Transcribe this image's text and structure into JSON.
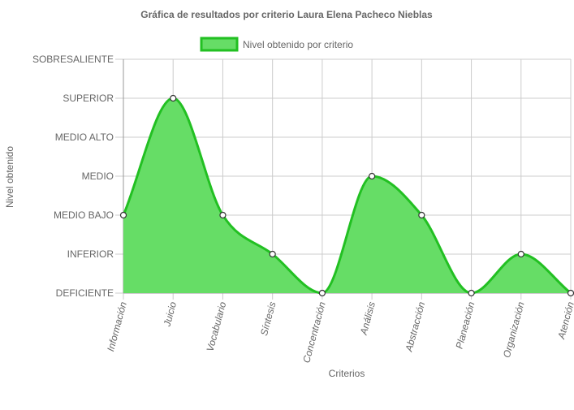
{
  "chart_data": {
    "type": "area",
    "title": "Gráfica de resultados por criterio Laura Elena Pacheco Nieblas",
    "xlabel": "Criterios",
    "ylabel": "Nivel obtenido",
    "categories": [
      "Información",
      "Juicio",
      "Vocabulario",
      "Síntesis",
      "Concentración",
      "Análisis",
      "Abstracción",
      "Planeación",
      "Organización",
      "Atención"
    ],
    "y_levels": [
      "DEFICIENTE",
      "INFERIOR",
      "MEDIO BAJO",
      "MEDIO",
      "MEDIO ALTO",
      "SUPERIOR",
      "SOBRESALIENTE"
    ],
    "ylim": [
      0,
      6
    ],
    "series": [
      {
        "name": "Nivel obtenido por criterio",
        "values": [
          2,
          5,
          2,
          1,
          0,
          3,
          2,
          0,
          1,
          0
        ]
      }
    ],
    "legend_position": "top",
    "grid": true,
    "colors": {
      "fill": "#66dd66",
      "stroke": "#22c022",
      "point_fill": "#ffffff",
      "point_stroke": "#333333",
      "grid": "#cccccc",
      "text": "#666666",
      "title": "#666666"
    }
  }
}
